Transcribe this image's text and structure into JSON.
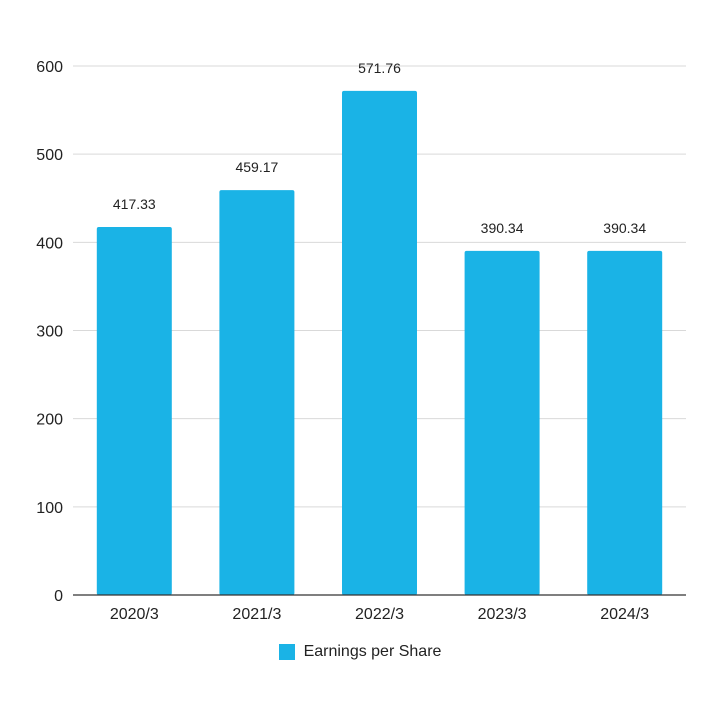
{
  "chart_data": {
    "type": "bar",
    "categories": [
      "2020/3",
      "2021/3",
      "2022/3",
      "2023/3",
      "2024/3"
    ],
    "series": [
      {
        "name": "Earnings per Share",
        "values": [
          417.33,
          459.17,
          571.76,
          390.34,
          390.34
        ],
        "color": "#1ab3e6"
      }
    ],
    "data_labels": [
      "417.33",
      "459.17",
      "571.76",
      "390.34",
      "390.34"
    ],
    "y_ticks": [
      0,
      100,
      200,
      300,
      400,
      500,
      600
    ],
    "ylim": [
      0,
      600
    ],
    "grid": true,
    "legend_position": "bottom"
  }
}
